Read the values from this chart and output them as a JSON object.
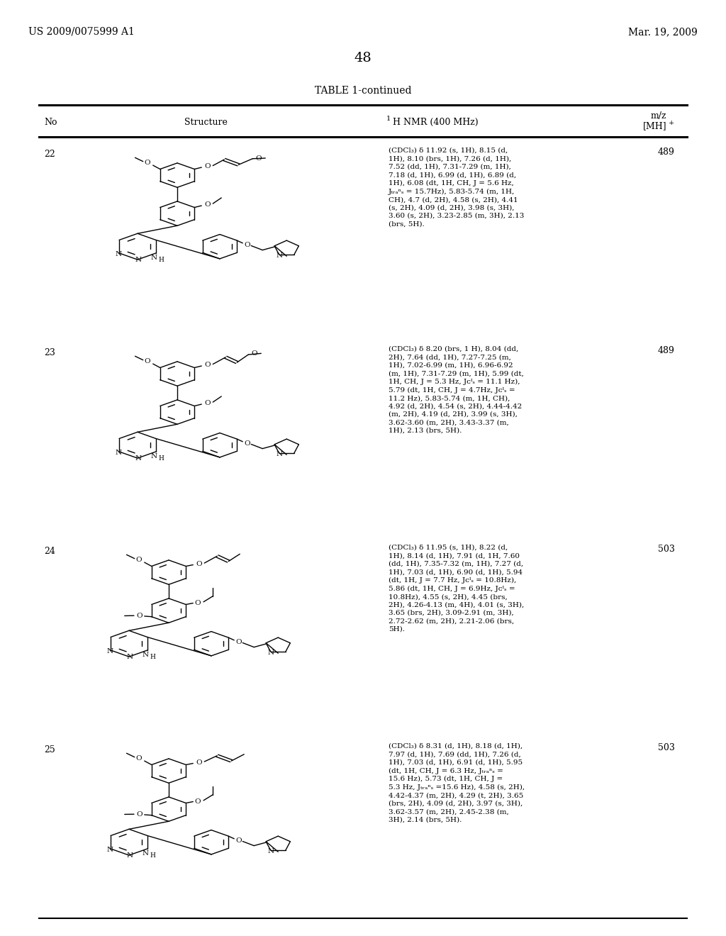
{
  "page_title_left": "US 2009/0075999 A1",
  "page_title_right": "Mar. 19, 2009",
  "page_number": "48",
  "table_title": "TABLE 1-continued",
  "rows": [
    {
      "no": "22",
      "nmr": "(CDCl₃) δ 11.92 (s, 1H), 8.15 (d,\n1H), 8.10 (brs, 1H), 7.26 (d, 1H),\n7.52 (dd, 1H), 7.31-7.29 (m, 1H),\n7.18 (d, 1H), 6.99 (d, 1H), 6.89 (d,\n1H), 6.08 (dt, 1H, CH, J = 5.6 Hz,\nJₜᵣₐⁿₛ = 15.7Hz), 5.83-5.74 (m, 1H,\nCH), 4.7 (d, 2H), 4.58 (s, 2H), 4.41\n(s, 2H), 4.09 (d, 2H), 3.98 (s, 3H),\n3.60 (s, 2H), 3.23-2.85 (m, 3H), 2.13\n(brs, 5H).",
      "mz": "489"
    },
    {
      "no": "23",
      "nmr": "(CDCl₃) δ 8.20 (brs, 1 H), 8.04 (dd,\n2H), 7.64 (dd, 1H), 7.27-7.25 (m,\n1H), 7.02-6.99 (m, 1H), 6.96-6.92\n(m, 1H), 7.31-7.29 (m, 1H), 5.99 (dt,\n1H, CH, J = 5.3 Hz, Jᴄᴵₛ = 11.1 Hz),\n5.79 (dt, 1H, CH, J = 4.7Hz, Jᴄᴵₛ =\n11.2 Hz), 5.83-5.74 (m, 1H, CH),\n4.92 (d, 2H), 4.54 (s, 2H), 4.44-4.42\n(m, 2H), 4.19 (d, 2H), 3.99 (s, 3H),\n3.62-3.60 (m, 2H), 3.43-3.37 (m,\n1H), 2.13 (brs, 5H).",
      "mz": "489"
    },
    {
      "no": "24",
      "nmr": "(CDCl₃) δ 11.95 (s, 1H), 8.22 (d,\n1H), 8.14 (d, 1H), 7.91 (d, 1H, 7.60\n(dd, 1H), 7.35-7.32 (m, 1H), 7.27 (d,\n1H), 7.03 (d, 1H), 6.90 (d, 1H), 5.94\n(dt, 1H, J = 7.7 Hz, Jᴄᴵₛ = 10.8Hz),\n5.86 (dt, 1H, CH, J = 6.9Hz, Jᴄᴵₛ =\n10.8Hz), 4.55 (s, 2H), 4.45 (brs,\n2H), 4.26-4.13 (m, 4H), 4.01 (s, 3H),\n3.65 (brs, 2H), 3.09-2.91 (m, 3H),\n2.72-2.62 (m, 2H), 2.21-2.06 (brs,\n5H).",
      "mz": "503"
    },
    {
      "no": "25",
      "nmr": "(CDCl₃) δ 8.31 (d, 1H), 8.18 (d, 1H),\n7.97 (d, 1H), 7.69 (dd, 1H), 7.26 (d,\n1H), 7.03 (d, 1H), 6.91 (d, 1H), 5.95\n(dt, 1H, CH, J = 6.3 Hz, Jₜᵣₐⁿₛ =\n15.6 Hz), 5.73 (dt, 1H, CH, J =\n5.3 Hz, Jₜᵣₐⁿₛ =15.6 Hz), 4.58 (s, 2H),\n4.42-4.37 (m, 2H), 4.29 (t, 2H), 3.65\n(brs, 2H), 4.09 (d, 2H), 3.97 (s, 3H),\n3.62-3.57 (m, 2H), 2.45-2.38 (m,\n3H), 2.14 (brs, 5H).",
      "mz": "503"
    }
  ],
  "bg": "#ffffff",
  "fg": "#000000",
  "fs_page": 10,
  "fs_table": 9,
  "fs_body": 8,
  "fs_nmr": 7.5
}
